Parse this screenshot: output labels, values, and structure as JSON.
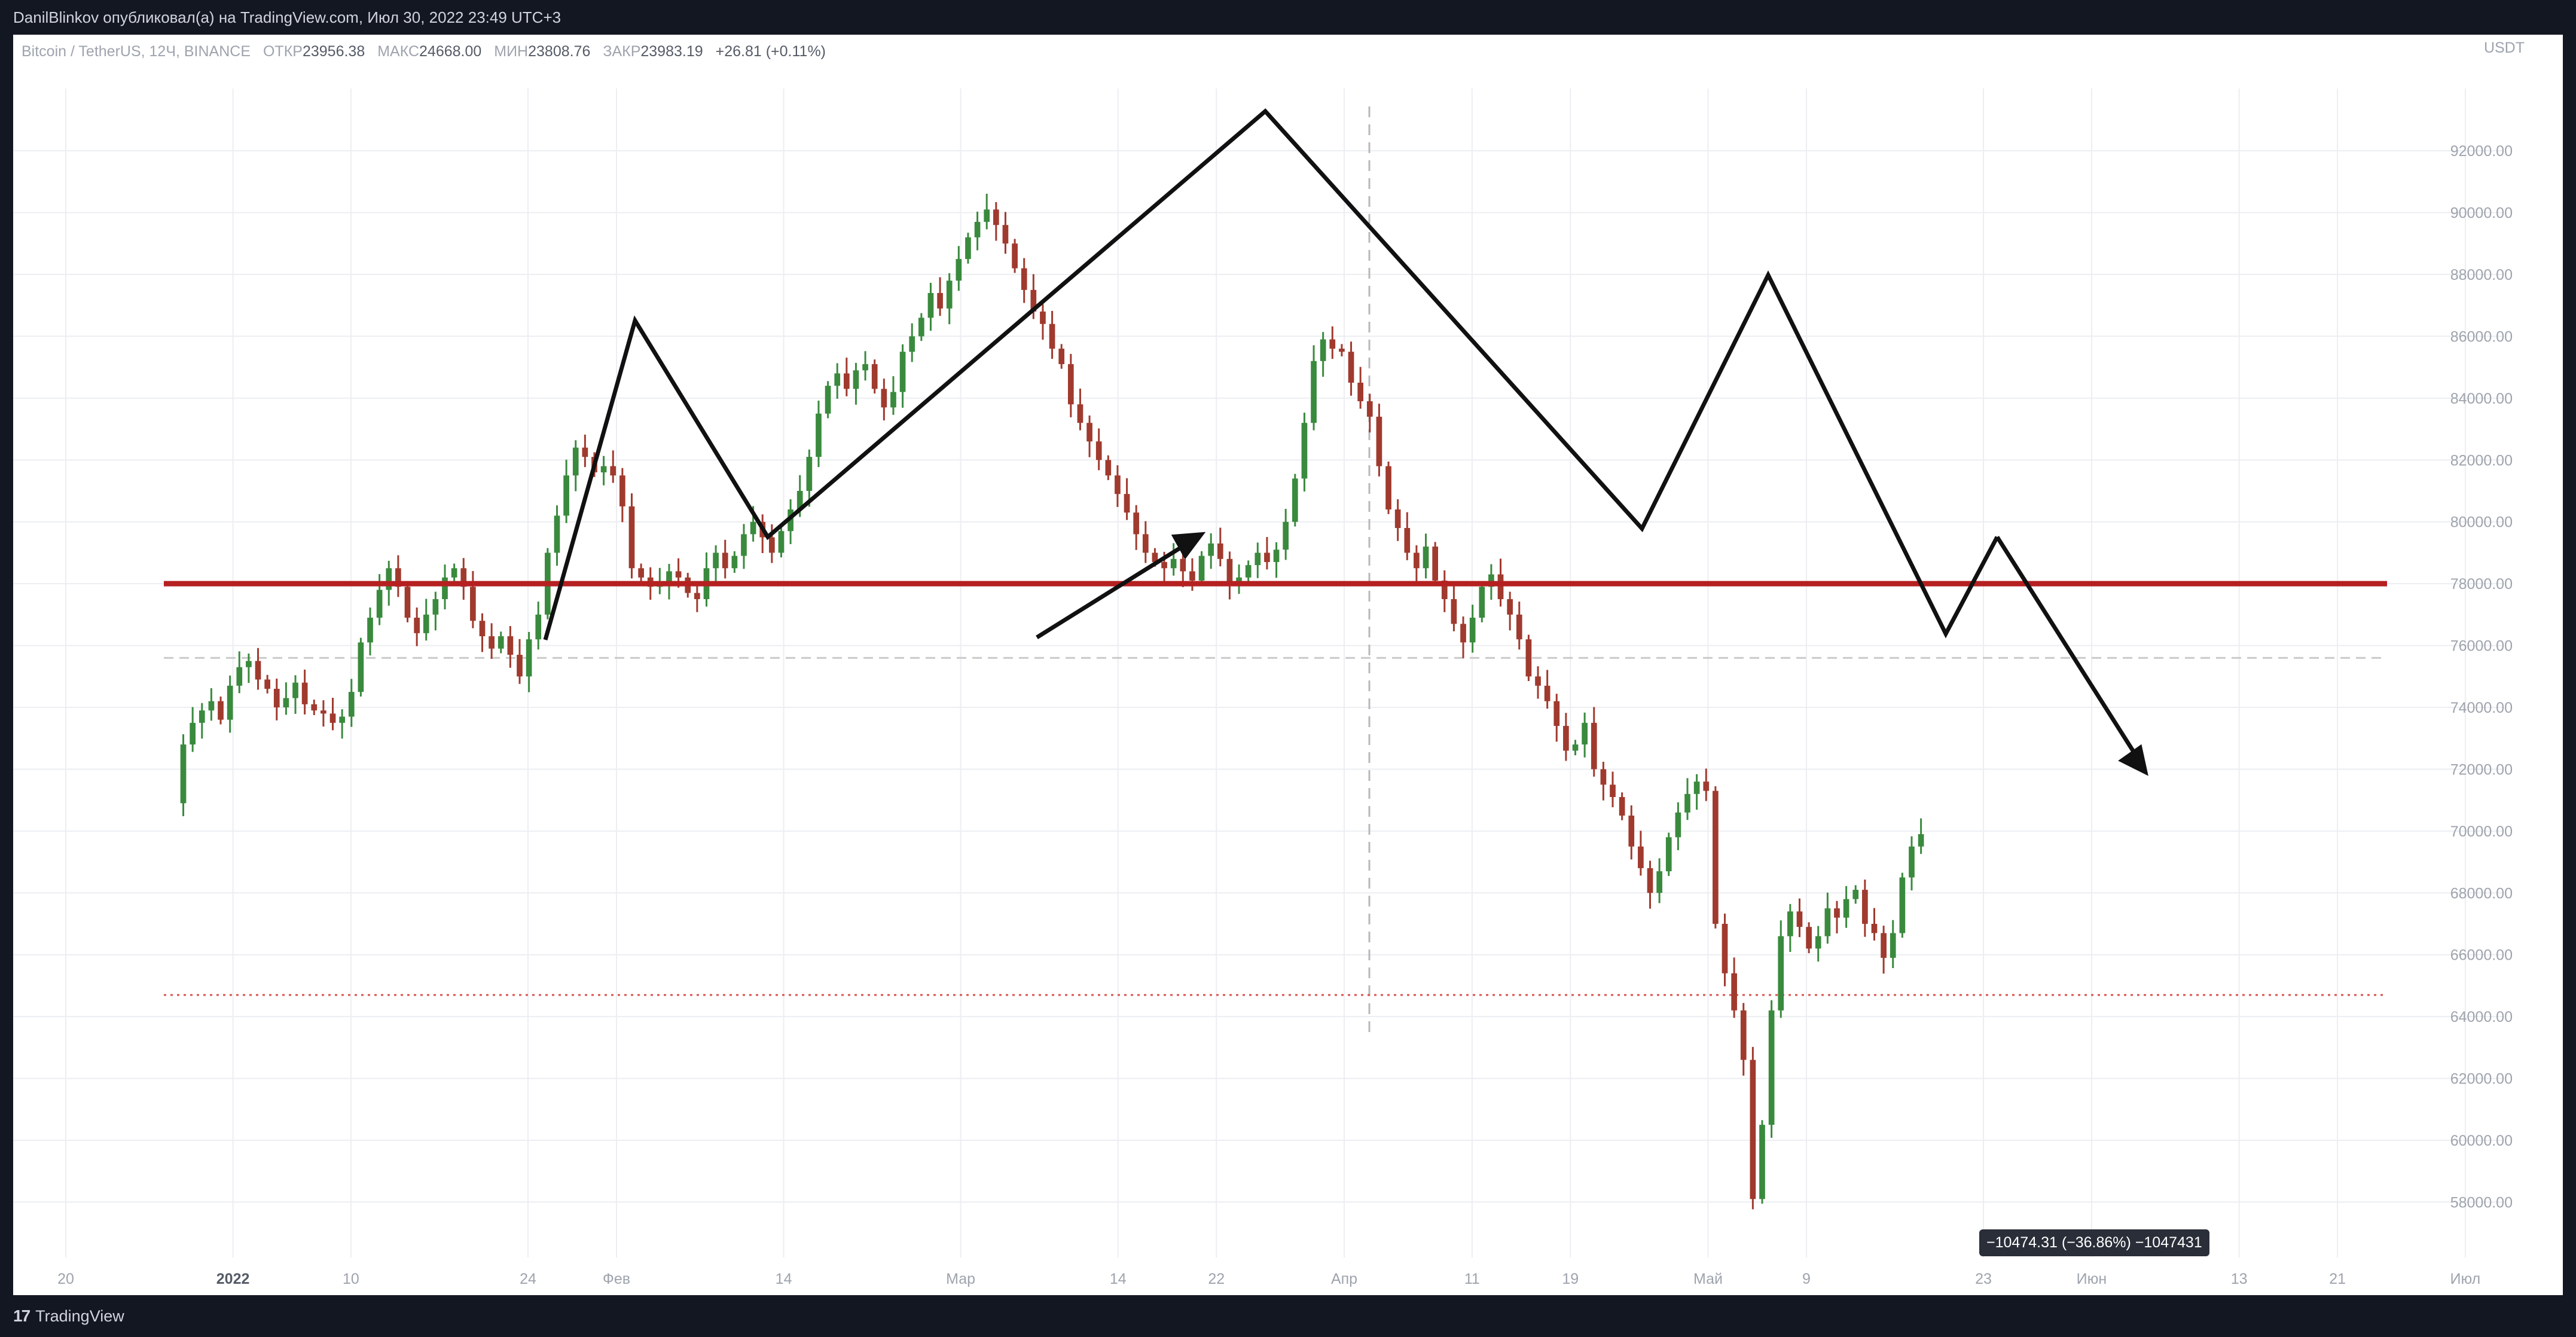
{
  "header": {
    "publication": "DanilBlinkov опубликовал(а) на TradingView.com, Июл 30, 2022 23:49 UTC+3"
  },
  "legend": {
    "symbol": "Bitcoin / TetherUS, 12Ч, BINANCE",
    "open_label": "ОТКР",
    "open_value": "23956.38",
    "high_label": "МАКС",
    "high_value": "24668.00",
    "low_label": "МИН",
    "low_value": "23808.76",
    "close_label": "ЗАКР",
    "close_value": "23983.19",
    "change": "+26.81 (+0.11%)"
  },
  "axis": {
    "currency": "USDT"
  },
  "measure_tooltip": "−10474.31 (−36.86%) −1047431",
  "footer": {
    "brand": "TradingView"
  },
  "colors": {
    "up": "#3a8a3e",
    "down": "#a03a2e",
    "neckline": "#b52020",
    "dashed": "#c9c9c9"
  },
  "chart_data": {
    "type": "candlestick",
    "ylim": [
      56500,
      91500
    ],
    "y_ticks": [
      {
        "value": 92000,
        "label": "92000.00"
      },
      {
        "value": 90000,
        "label": "90000.00"
      },
      {
        "value": 88000,
        "label": "88000.00"
      },
      {
        "value": 86000,
        "label": "86000.00"
      },
      {
        "value": 84000,
        "label": "84000.00"
      },
      {
        "value": 82000,
        "label": "82000.00"
      },
      {
        "value": 80000,
        "label": "80000.00"
      },
      {
        "value": 78000,
        "label": "78000.00"
      },
      {
        "value": 76000,
        "label": "76000.00"
      },
      {
        "value": 74000,
        "label": "74000.00"
      },
      {
        "value": 72000,
        "label": "72000.00"
      },
      {
        "value": 70000,
        "label": "70000.00"
      },
      {
        "value": 68000,
        "label": "68000.00"
      },
      {
        "value": 66000,
        "label": "66000.00"
      },
      {
        "value": 64000,
        "label": "64000.00"
      },
      {
        "value": 62000,
        "label": "62000.00"
      },
      {
        "value": 60000,
        "label": "60000.00"
      },
      {
        "value": 58000,
        "label": "58000.00"
      }
    ],
    "x_domain": [
      0,
      233
    ],
    "x_ticks": [
      {
        "pos": 0,
        "label": "20"
      },
      {
        "pos": 17,
        "label": "2022"
      },
      {
        "pos": 29,
        "label": "10"
      },
      {
        "pos": 47,
        "label": "24"
      },
      {
        "pos": 56,
        "label": "Фев"
      },
      {
        "pos": 73,
        "label": "14"
      },
      {
        "pos": 91,
        "label": "Мар"
      },
      {
        "pos": 107,
        "label": "14"
      },
      {
        "pos": 117,
        "label": "22"
      },
      {
        "pos": 130,
        "label": "Апр"
      },
      {
        "pos": 143,
        "label": "11"
      },
      {
        "pos": 153,
        "label": "19"
      },
      {
        "pos": 167,
        "label": "Май"
      },
      {
        "pos": 177,
        "label": "9"
      },
      {
        "pos": 195,
        "label": "23"
      },
      {
        "pos": 206,
        "label": "Июн"
      },
      {
        "pos": 221,
        "label": "13"
      },
      {
        "pos": 231,
        "label": "21"
      },
      {
        "pos": 244,
        "label": "Июл"
      }
    ],
    "neckline": 78000,
    "dashed_level": 75600,
    "dotted_level": 64700,
    "candles_start_pos": 11,
    "candles_step": 0.95,
    "closes": [
      70900,
      72800,
      73500,
      73900,
      74200,
      73600,
      74700,
      75300,
      75500,
      74900,
      74600,
      74000,
      74300,
      74800,
      74100,
      73900,
      73800,
      73500,
      73700,
      74500,
      76100,
      76900,
      77800,
      78500,
      77900,
      76900,
      76400,
      77000,
      77500,
      78200,
      78500,
      77900,
      76800,
      76300,
      75900,
      76300,
      75700,
      75000,
      76200,
      77000,
      79000,
      80200,
      81500,
      82400,
      82100,
      81600,
      81800,
      81500,
      80500,
      78500,
      78200,
      77900,
      78000,
      78400,
      78200,
      77700,
      77500,
      78500,
      79000,
      78500,
      78900,
      79600,
      80000,
      79500,
      79000,
      79700,
      80400,
      81000,
      82100,
      83500,
      84400,
      84800,
      84300,
      84900,
      85100,
      84300,
      83700,
      84200,
      85500,
      86000,
      86600,
      87400,
      86900,
      87800,
      88500,
      89200,
      89700,
      90100,
      89600,
      89000,
      88200,
      87500,
      86800,
      86400,
      85600,
      85100,
      83800,
      83200,
      82600,
      82000,
      81500,
      80900,
      80300,
      79600,
      79000,
      78700,
      78500,
      78800,
      78400,
      78100,
      78900,
      79300,
      78800,
      78000,
      78200,
      78600,
      79000,
      78700,
      79100,
      80000,
      81400,
      83200,
      85200,
      85900,
      85600,
      85500,
      84500,
      83900,
      83400,
      81800,
      80400,
      79800,
      79000,
      78500,
      79200,
      78100,
      77500,
      76700,
      76100,
      76900,
      77900,
      78300,
      77500,
      77000,
      76200,
      75000,
      74700,
      74200,
      73400,
      72600,
      72800,
      73500,
      72000,
      71500,
      71100,
      70500,
      69500,
      68800,
      68000,
      68700,
      69800,
      70600,
      71200,
      71600,
      71300,
      67000,
      65400,
      64200,
      62600,
      58100,
      60500,
      64200,
      66600,
      67400,
      66900,
      66200,
      66600,
      67500,
      67200,
      67800,
      68100,
      67000,
      66700,
      65900,
      66700,
      68500,
      69500,
      69900
    ]
  }
}
